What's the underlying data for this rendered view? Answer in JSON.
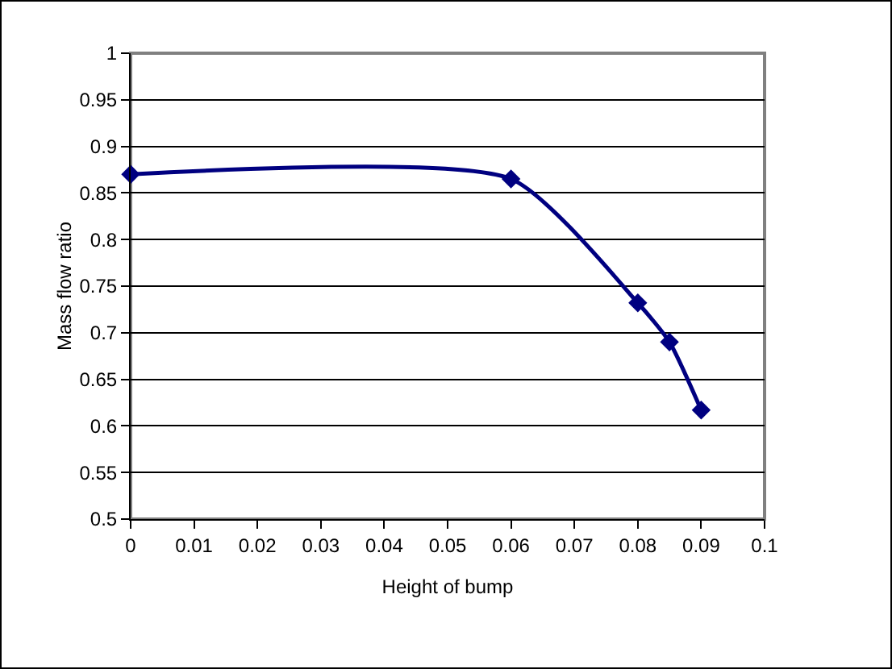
{
  "chart_data": {
    "type": "line",
    "xlabel": "Height of bump",
    "ylabel": "Mass flow ratio",
    "x": [
      0,
      0.06,
      0.08,
      0.085,
      0.09
    ],
    "series": [
      {
        "color": "#000080",
        "values": [
          0.87,
          0.865,
          0.732,
          0.69,
          0.617
        ]
      }
    ],
    "xlim": [
      0,
      0.1
    ],
    "xticks": [
      0,
      0.01,
      0.02,
      0.03,
      0.04,
      0.05,
      0.06,
      0.07,
      0.08,
      0.09,
      0.1
    ],
    "ylim": [
      0.5,
      1
    ],
    "yticks": [
      0.5,
      0.55,
      0.6,
      0.65,
      0.7,
      0.75,
      0.8,
      0.85,
      0.9,
      0.95,
      1
    ],
    "grid": "y",
    "legend": false,
    "marker": "diamond",
    "line_style": "solid"
  }
}
